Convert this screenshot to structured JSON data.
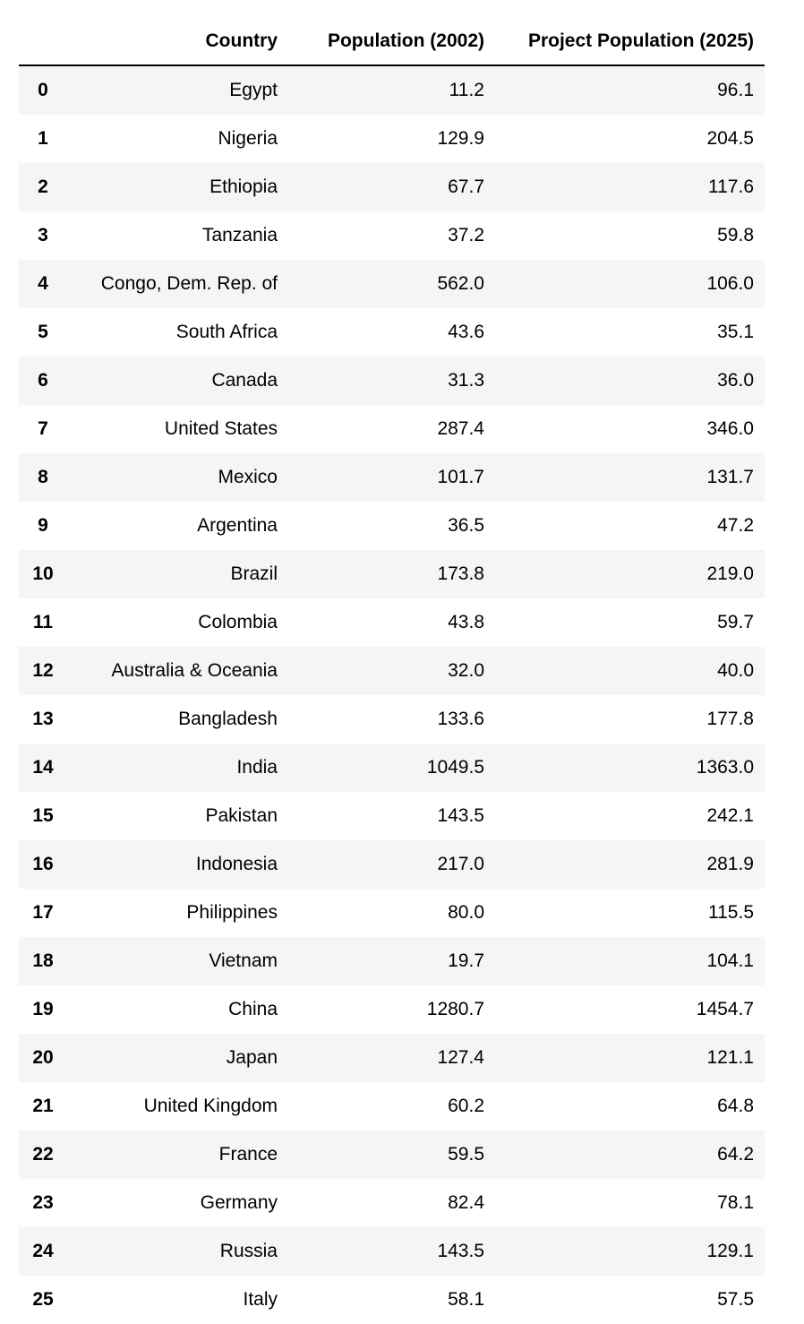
{
  "table": {
    "columns": [
      "",
      "Country",
      "Population (2002)",
      "Project Population (2025)"
    ],
    "rows": [
      {
        "index": "0",
        "country": "Egypt",
        "pop_2002": "11.2",
        "pop_2025": "96.1"
      },
      {
        "index": "1",
        "country": "Nigeria",
        "pop_2002": "129.9",
        "pop_2025": "204.5"
      },
      {
        "index": "2",
        "country": "Ethiopia",
        "pop_2002": "67.7",
        "pop_2025": "117.6"
      },
      {
        "index": "3",
        "country": "Tanzania",
        "pop_2002": "37.2",
        "pop_2025": "59.8"
      },
      {
        "index": "4",
        "country": "Congo, Dem. Rep. of",
        "pop_2002": "562.0",
        "pop_2025": "106.0"
      },
      {
        "index": "5",
        "country": "South Africa",
        "pop_2002": "43.6",
        "pop_2025": "35.1"
      },
      {
        "index": "6",
        "country": "Canada",
        "pop_2002": "31.3",
        "pop_2025": "36.0"
      },
      {
        "index": "7",
        "country": "United States",
        "pop_2002": "287.4",
        "pop_2025": "346.0"
      },
      {
        "index": "8",
        "country": "Mexico",
        "pop_2002": "101.7",
        "pop_2025": "131.7"
      },
      {
        "index": "9",
        "country": "Argentina",
        "pop_2002": "36.5",
        "pop_2025": "47.2"
      },
      {
        "index": "10",
        "country": "Brazil",
        "pop_2002": "173.8",
        "pop_2025": "219.0"
      },
      {
        "index": "11",
        "country": "Colombia",
        "pop_2002": "43.8",
        "pop_2025": "59.7"
      },
      {
        "index": "12",
        "country": "Australia & Oceania",
        "pop_2002": "32.0",
        "pop_2025": "40.0"
      },
      {
        "index": "13",
        "country": "Bangladesh",
        "pop_2002": "133.6",
        "pop_2025": "177.8"
      },
      {
        "index": "14",
        "country": "India",
        "pop_2002": "1049.5",
        "pop_2025": "1363.0"
      },
      {
        "index": "15",
        "country": "Pakistan",
        "pop_2002": "143.5",
        "pop_2025": "242.1"
      },
      {
        "index": "16",
        "country": "Indonesia",
        "pop_2002": "217.0",
        "pop_2025": "281.9"
      },
      {
        "index": "17",
        "country": "Philippines",
        "pop_2002": "80.0",
        "pop_2025": "115.5"
      },
      {
        "index": "18",
        "country": "Vietnam",
        "pop_2002": "19.7",
        "pop_2025": "104.1"
      },
      {
        "index": "19",
        "country": "China",
        "pop_2002": "1280.7",
        "pop_2025": "1454.7"
      },
      {
        "index": "20",
        "country": "Japan",
        "pop_2002": "127.4",
        "pop_2025": "121.1"
      },
      {
        "index": "21",
        "country": "United Kingdom",
        "pop_2002": "60.2",
        "pop_2025": "64.8"
      },
      {
        "index": "22",
        "country": "France",
        "pop_2002": "59.5",
        "pop_2025": "64.2"
      },
      {
        "index": "23",
        "country": "Germany",
        "pop_2002": "82.4",
        "pop_2025": "78.1"
      },
      {
        "index": "24",
        "country": "Russia",
        "pop_2002": "143.5",
        "pop_2025": "129.1"
      },
      {
        "index": "25",
        "country": "Italy",
        "pop_2002": "58.1",
        "pop_2025": "57.5"
      }
    ]
  },
  "colors": {
    "stripe": "#f5f5f5",
    "header_rule": "#000000"
  }
}
